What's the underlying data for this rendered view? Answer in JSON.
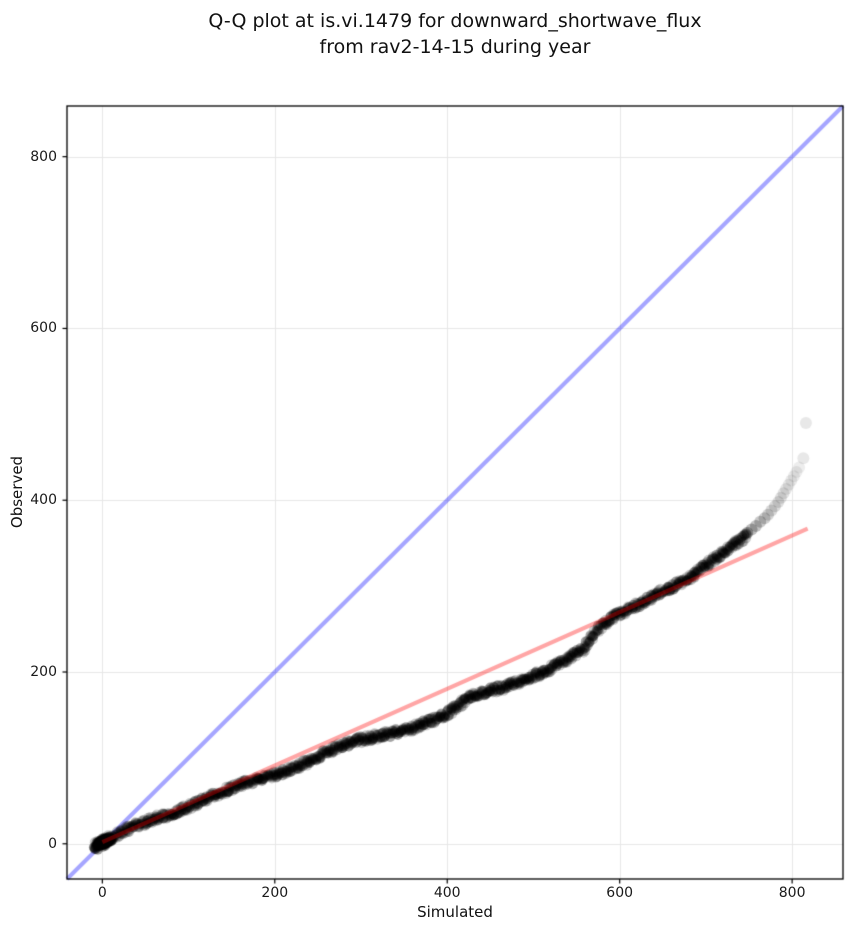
{
  "title": {
    "line1": "Q-Q plot at is.vi.1479 for downward_shortwave_flux",
    "line2": "from rav2-14-15 during year"
  },
  "axes": {
    "xlabel": "Simulated",
    "ylabel": "Observed",
    "x_ticks": [
      0,
      200,
      400,
      600,
      800
    ],
    "y_ticks": [
      0,
      200,
      400,
      600,
      800
    ],
    "xlim": [
      -41,
      859
    ],
    "ylim": [
      -41,
      859
    ],
    "grid": true,
    "grid_color": "#e7e7e7",
    "spine_color": "#000000",
    "background_color": "#ffffff"
  },
  "chart_data": {
    "type": "scatter",
    "title": "Q-Q plot at is.vi.1479 for downward_shortwave_flux\nfrom rav2-14-15 during year",
    "xlabel": "Simulated",
    "ylabel": "Observed",
    "xlim": [
      -41,
      859
    ],
    "ylim": [
      -41,
      859
    ],
    "grid": true,
    "legend": "none",
    "series": [
      {
        "name": "identity-line",
        "type": "line",
        "color": "#0000ff",
        "alpha": 0.35,
        "width": 4,
        "points": [
          [
            -41,
            -41
          ],
          [
            859,
            859
          ]
        ]
      },
      {
        "name": "qq-quantile-points",
        "type": "scatter",
        "color": "#000000",
        "marker_radius": 5,
        "band_alpha": 0.2,
        "curve": [
          [
            -10,
            -5
          ],
          [
            0,
            0
          ],
          [
            40,
            19
          ],
          [
            80,
            37
          ],
          [
            120,
            54
          ],
          [
            160,
            68
          ],
          [
            200,
            82
          ],
          [
            240,
            97
          ],
          [
            280,
            112
          ],
          [
            320,
            125
          ],
          [
            360,
            136
          ],
          [
            396,
            148
          ],
          [
            415,
            162
          ],
          [
            430,
            173
          ],
          [
            450,
            181
          ],
          [
            480,
            190
          ],
          [
            515,
            200
          ],
          [
            540,
            213
          ],
          [
            560,
            227
          ],
          [
            572,
            247
          ],
          [
            590,
            263
          ],
          [
            605,
            271
          ],
          [
            625,
            280
          ],
          [
            645,
            289
          ],
          [
            662,
            297
          ],
          [
            680,
            308
          ],
          [
            697,
            324
          ],
          [
            715,
            338
          ],
          [
            730,
            350
          ],
          [
            740,
            356
          ],
          [
            748,
            362
          ]
        ],
        "tail": [
          [
            748,
            362,
            0.3
          ],
          [
            753,
            366,
            0.26
          ],
          [
            758,
            370,
            0.23
          ],
          [
            763,
            375,
            0.21
          ],
          [
            768,
            379,
            0.19
          ],
          [
            772,
            383,
            0.17
          ],
          [
            776,
            388,
            0.15
          ],
          [
            780,
            393,
            0.14
          ],
          [
            784,
            398,
            0.13
          ],
          [
            787,
            403,
            0.12
          ],
          [
            790,
            408,
            0.11
          ],
          [
            793,
            413,
            0.1
          ],
          [
            796,
            418,
            0.09
          ],
          [
            799,
            423,
            0.085
          ],
          [
            802,
            428,
            0.08
          ],
          [
            805,
            433,
            0.075
          ],
          [
            808,
            438,
            0.07
          ],
          [
            813,
            449,
            0.09
          ],
          [
            816,
            490,
            0.09
          ]
        ],
        "origin_cluster": {
          "center": [
            2,
            1
          ],
          "x_spread": 9,
          "y_slope": 0.42,
          "y_spread": 4.5,
          "count": 170
        }
      },
      {
        "name": "fit-line",
        "type": "line",
        "color": "#ff0000",
        "alpha": 0.35,
        "width": 4,
        "points": [
          [
            0,
            2
          ],
          [
            818,
            367
          ]
        ]
      }
    ]
  }
}
